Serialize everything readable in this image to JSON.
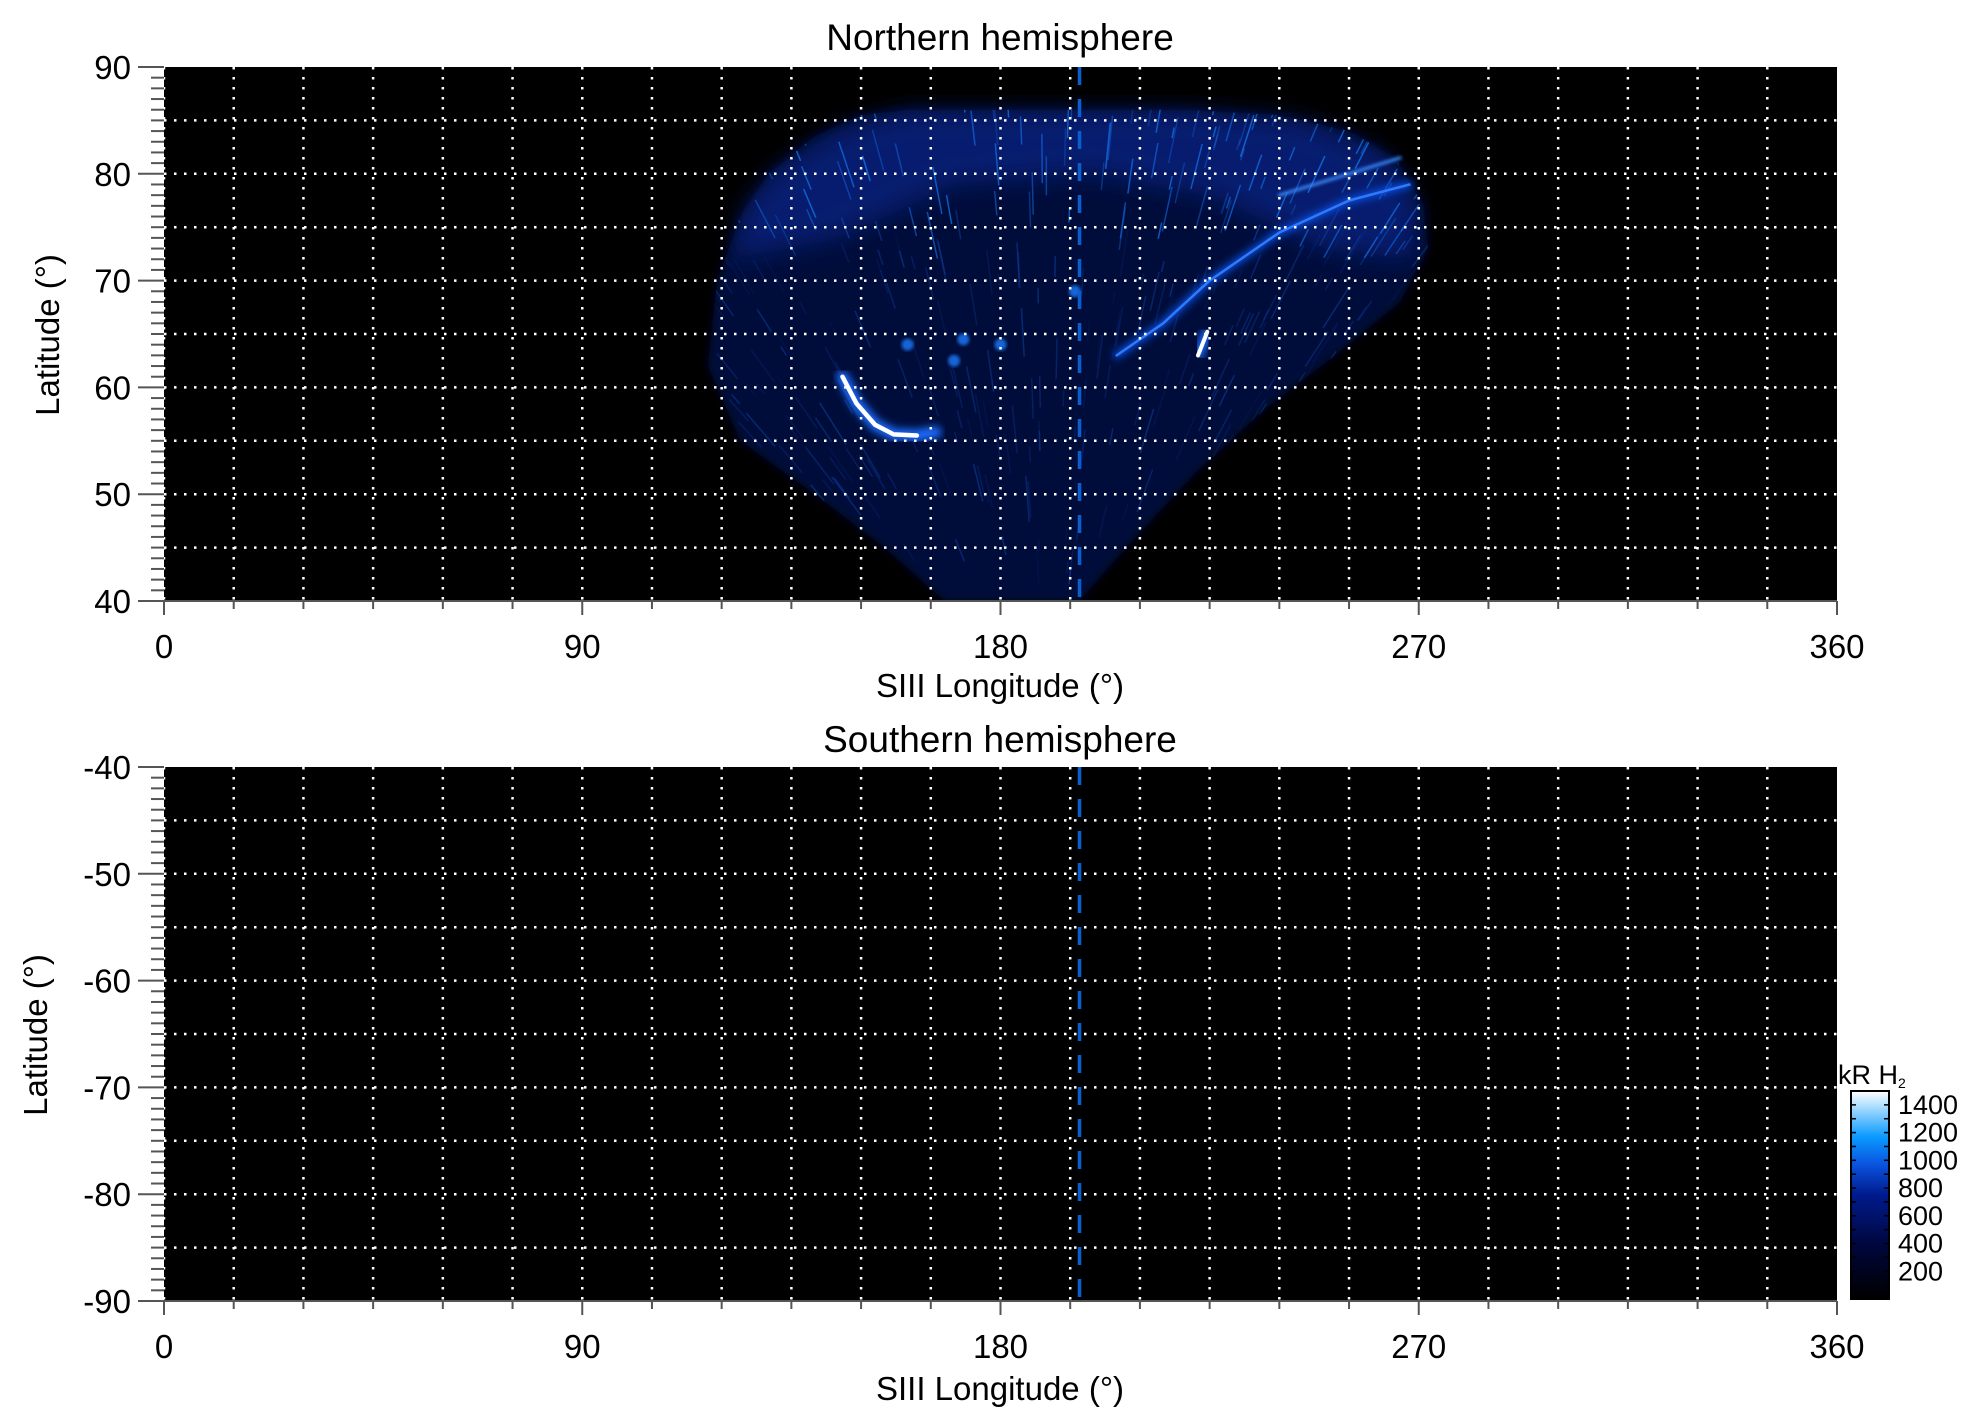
{
  "chart_data": [
    {
      "type": "heatmap",
      "title": "Northern hemisphere",
      "xlabel": "SIII Longitude (°)",
      "ylabel": "Latitude (°)",
      "xlim": [
        0,
        360
      ],
      "ylim": [
        40,
        90
      ],
      "xticks": [
        "0",
        "90",
        "180",
        "270",
        "360"
      ],
      "yticks": [
        "90",
        "80",
        "70",
        "60",
        "50",
        "40"
      ],
      "grid": true,
      "grid_step_lon": 15,
      "grid_step_lat": 5,
      "marker_longitude": 197,
      "marker_color": "#0a5fd0",
      "emission_features": [
        {
          "lon_range": [
            146,
            165
          ],
          "lat_range": [
            55.5,
            61
          ],
          "level_kR": 1400
        },
        {
          "lon": 224,
          "lat": 64,
          "level_kR": 1200
        },
        {
          "lon_range": [
            205,
            268
          ],
          "lat_range": [
            63,
            79
          ],
          "level_kR": 900
        }
      ]
    },
    {
      "type": "heatmap",
      "title": "Southern hemisphere",
      "xlabel": "SIII Longitude (°)",
      "ylabel": "Latitude (°)",
      "xlim": [
        0,
        360
      ],
      "ylim": [
        -90,
        -40
      ],
      "xticks": [
        "0",
        "90",
        "180",
        "270",
        "360"
      ],
      "yticks": [
        "-40",
        "-50",
        "-60",
        "-70",
        "-80",
        "-90"
      ],
      "grid": true,
      "grid_step_lon": 15,
      "grid_step_lat": 5,
      "marker_longitude": 197,
      "marker_color": "#0a5fd0",
      "emission_features": []
    }
  ],
  "colorbar": {
    "label": "kR H",
    "label_subscript": "2",
    "range": [
      0,
      1500
    ],
    "ticks": [
      "200",
      "400",
      "600",
      "800",
      "1000",
      "1200",
      "1400"
    ],
    "colors": [
      "#000000",
      "#00063a",
      "#001a8c",
      "#0a55e0",
      "#0a9aff",
      "#ffffff"
    ]
  }
}
